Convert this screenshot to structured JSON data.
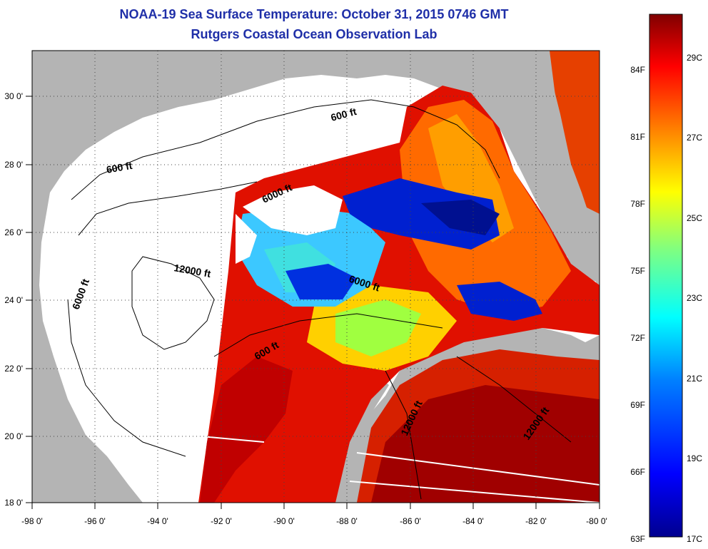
{
  "title": {
    "line1": "NOAA-19 Sea Surface Temperature:  October 31, 2015 0746 GMT",
    "line2": "Rutgers Coastal Ocean Observation Lab"
  },
  "map": {
    "lon_range": [
      -98,
      -80
    ],
    "lat_range": [
      18,
      31
    ],
    "lon_ticks": [
      "-98 0'",
      "-96 0'",
      "-94 0'",
      "-92 0'",
      "-90 0'",
      "-88 0'",
      "-86 0'",
      "-84 0'",
      "-82 0'",
      "-80 0'"
    ],
    "lat_ticks": [
      "18 0'",
      "20 0'",
      "22 0'",
      "24 0'",
      "26 0'",
      "28 0'",
      "30 0'"
    ],
    "contour_labels": [
      "600 ft",
      "600 ft",
      "6000 ft",
      "12000 ft",
      "6000 ft",
      "6000 ft",
      "600 ft",
      "12000 ft",
      "12000 ft"
    ],
    "land_color": "#b4b4b4",
    "cloud_color": "#ffffff"
  },
  "colorbar": {
    "f_labels": [
      "84F",
      "81F",
      "78F",
      "75F",
      "72F",
      "69F",
      "66F",
      "63F"
    ],
    "c_labels": [
      "29C",
      "27C",
      "25C",
      "23C",
      "21C",
      "19C",
      "17C"
    ],
    "colors": [
      "#800000",
      "#ff0000",
      "#ff8000",
      "#ffff00",
      "#80ff80",
      "#00ffff",
      "#0080ff",
      "#0000ff",
      "#00008f"
    ]
  }
}
